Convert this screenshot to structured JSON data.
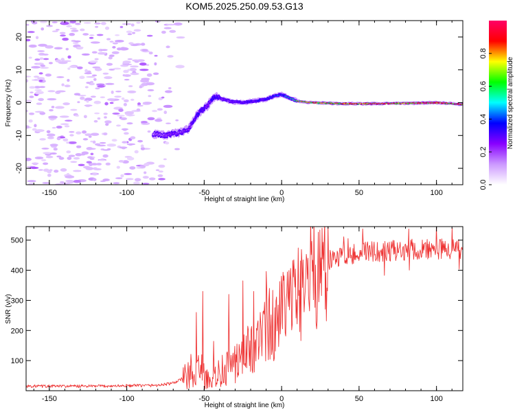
{
  "title": "KOM5.2025.250.09.53.G13",
  "chart_data": [
    {
      "type": "heatmap",
      "xlabel": "Height of straight line (km)",
      "ylabel": "Frequency (Hz)",
      "xlim": [
        -165,
        117
      ],
      "ylim": [
        -25,
        25
      ],
      "xticks": [
        -150,
        -100,
        -50,
        0,
        50,
        100
      ],
      "xtick_labels": [
        "-150",
        "-100",
        "-50",
        "0",
        "50",
        "100"
      ],
      "yticks": [
        -20,
        -10,
        0,
        10,
        20
      ],
      "ytick_labels": [
        "-20",
        "-10",
        "0",
        "10",
        "20"
      ],
      "colorbar": {
        "label": "Normalized spectral amplitude",
        "range": [
          0,
          1
        ],
        "ticks": [
          0.0,
          0.2,
          0.4,
          0.6,
          0.8
        ],
        "tick_labels": [
          "0.0",
          "0.2",
          "0.4",
          "0.6",
          "0.8"
        ],
        "colormap": [
          "#ffffff",
          "#cc99ff",
          "#8800ff",
          "#0000ff",
          "#00ffff",
          "#00ff00",
          "#ffff00",
          "#ff0000",
          "#ff0066"
        ]
      },
      "ridge": {
        "name": "Doppler track (frequency center vs height)",
        "x": [
          -83,
          -75,
          -70,
          -65,
          -60,
          -55,
          -52,
          -48,
          -45,
          -42,
          -38,
          -32,
          -25,
          -18,
          -10,
          -5,
          0,
          5,
          10,
          20,
          40,
          60,
          80,
          100,
          117
        ],
        "freq_hz": [
          -9.5,
          -10,
          -9.5,
          -9,
          -8,
          -4,
          -2.5,
          -1,
          1,
          2,
          1,
          0.3,
          0,
          0.5,
          1,
          2,
          2.5,
          1.5,
          0.5,
          0,
          -0.3,
          -0.3,
          -0.2,
          0,
          -0.5
        ],
        "amplitude": [
          0.15,
          0.2,
          0.25,
          0.2,
          0.25,
          0.3,
          0.35,
          0.25,
          0.3,
          0.3,
          0.25,
          0.25,
          0.3,
          0.3,
          0.35,
          0.4,
          0.45,
          0.5,
          0.7,
          0.75,
          0.8,
          0.85,
          0.8,
          0.85,
          0.8
        ]
      },
      "noise_region_x": [
        -165,
        -75
      ]
    },
    {
      "type": "line",
      "series": [
        {
          "name": "SNR",
          "color": "#ee3333"
        }
      ],
      "xlabel": "Height of straight line (km)",
      "ylabel": "SNR (v/v)",
      "xlim": [
        -165,
        117
      ],
      "ylim": [
        0,
        545
      ],
      "xticks": [
        -150,
        -100,
        -50,
        0,
        50,
        100
      ],
      "xtick_labels": [
        "-150",
        "-100",
        "-50",
        "0",
        "50",
        "100"
      ],
      "yticks": [
        100,
        200,
        300,
        400,
        500
      ],
      "ytick_labels": [
        "100",
        "200",
        "300",
        "400",
        "500"
      ],
      "trend": {
        "x": [
          -165,
          -120,
          -80,
          -70,
          -60,
          -52,
          -45,
          -40,
          -30,
          -20,
          -10,
          0,
          10,
          20,
          30,
          40,
          50,
          70,
          90,
          117
        ],
        "y": [
          15,
          15,
          18,
          25,
          50,
          70,
          30,
          60,
          90,
          140,
          200,
          250,
          320,
          390,
          430,
          450,
          460,
          465,
          470,
          470
        ]
      },
      "spikes": [
        {
          "x": -51,
          "y": 330
        },
        {
          "x": -55,
          "y": 260
        },
        {
          "x": -34,
          "y": 320
        },
        {
          "x": -25,
          "y": 365
        },
        {
          "x": -18,
          "y": 330
        },
        {
          "x": -8,
          "y": 340
        },
        {
          "x": 100,
          "y": 545
        },
        {
          "x": 110,
          "y": 540
        }
      ]
    }
  ]
}
